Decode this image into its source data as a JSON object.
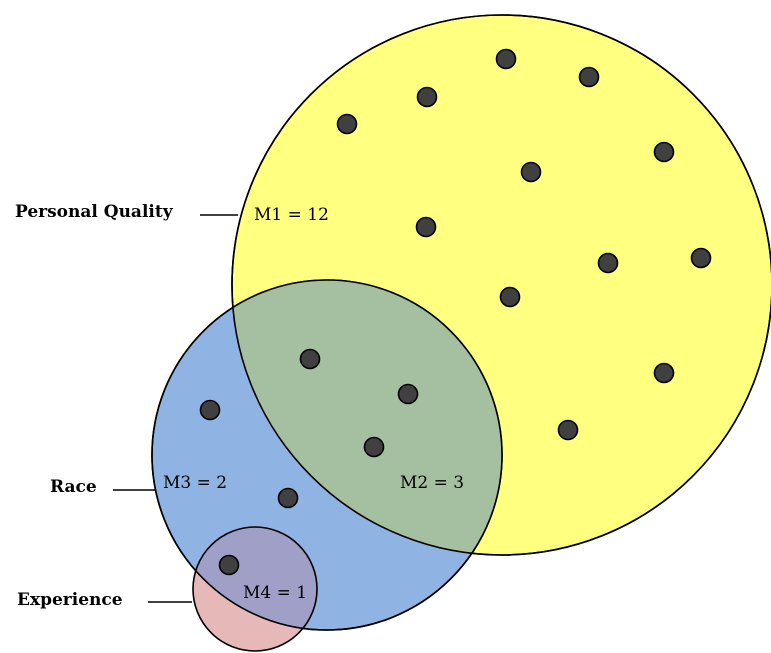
{
  "sets": [
    {
      "id": "personal-quality",
      "label": "Personal Quality",
      "fill": "#ffff80"
    },
    {
      "id": "race",
      "label": "Race",
      "fill": "#8fb4e3"
    },
    {
      "id": "experience",
      "label": "Experience",
      "fill": "#e6b9b8"
    }
  ],
  "regions": {
    "m1": "M1 = 12",
    "m2": "M2 = 3",
    "m3": "M3 = 2",
    "m4": "M4 = 1"
  },
  "colors": {
    "outline": "#000000",
    "point_fill": "#404040",
    "overlap_pq_race": "#a5c0a0",
    "overlap_race_experience": "#9f9fc8"
  },
  "point_counts": {
    "m1": 12,
    "m2": 3,
    "m3": 2,
    "m4": 1
  }
}
